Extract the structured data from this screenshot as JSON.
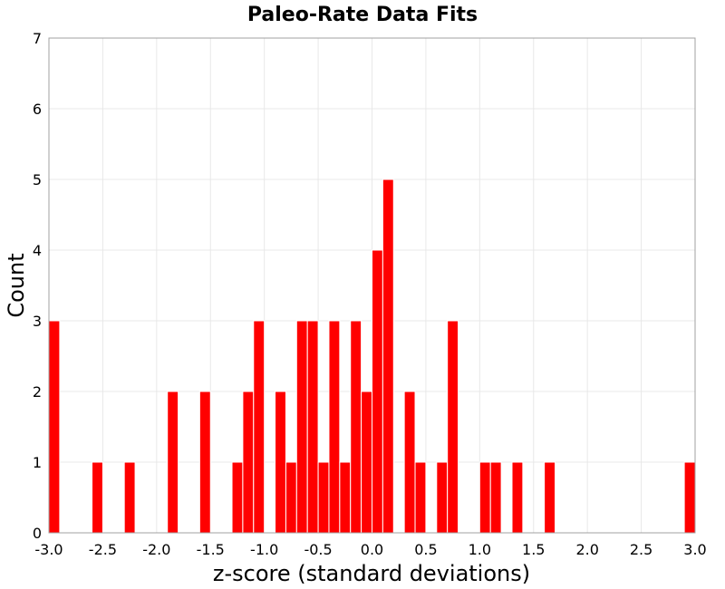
{
  "chart_data": {
    "type": "bar",
    "title": "Paleo-Rate Data Fits",
    "xlabel": "z-score (standard deviations)",
    "ylabel": "Count",
    "xlim": [
      -3.0,
      3.0
    ],
    "ylim": [
      0,
      7
    ],
    "bin_width": 0.1,
    "x_ticks": [
      "-3.0",
      "-2.5",
      "-2.0",
      "-1.5",
      "-1.0",
      "-0.5",
      "0.0",
      "0.5",
      "1.0",
      "1.5",
      "2.0",
      "2.5",
      "3.0"
    ],
    "y_ticks": [
      "0",
      "1",
      "2",
      "3",
      "4",
      "5",
      "6",
      "7"
    ],
    "bar_color": "#ff0000",
    "grid": true,
    "bins": [
      {
        "x": -2.95,
        "count": 3
      },
      {
        "x": -2.55,
        "count": 1
      },
      {
        "x": -2.25,
        "count": 1
      },
      {
        "x": -1.85,
        "count": 2
      },
      {
        "x": -1.55,
        "count": 2
      },
      {
        "x": -1.25,
        "count": 1
      },
      {
        "x": -1.15,
        "count": 2
      },
      {
        "x": -1.05,
        "count": 3
      },
      {
        "x": -0.85,
        "count": 2
      },
      {
        "x": -0.75,
        "count": 1
      },
      {
        "x": -0.65,
        "count": 3
      },
      {
        "x": -0.55,
        "count": 3
      },
      {
        "x": -0.45,
        "count": 1
      },
      {
        "x": -0.35,
        "count": 3
      },
      {
        "x": -0.25,
        "count": 1
      },
      {
        "x": -0.15,
        "count": 3
      },
      {
        "x": -0.05,
        "count": 2
      },
      {
        "x": 0.05,
        "count": 4
      },
      {
        "x": 0.15,
        "count": 5
      },
      {
        "x": 0.35,
        "count": 2
      },
      {
        "x": 0.45,
        "count": 1
      },
      {
        "x": 0.65,
        "count": 1
      },
      {
        "x": 0.75,
        "count": 3
      },
      {
        "x": 1.05,
        "count": 1
      },
      {
        "x": 1.15,
        "count": 1
      },
      {
        "x": 1.35,
        "count": 1
      },
      {
        "x": 1.65,
        "count": 1
      },
      {
        "x": 2.95,
        "count": 1
      }
    ]
  }
}
